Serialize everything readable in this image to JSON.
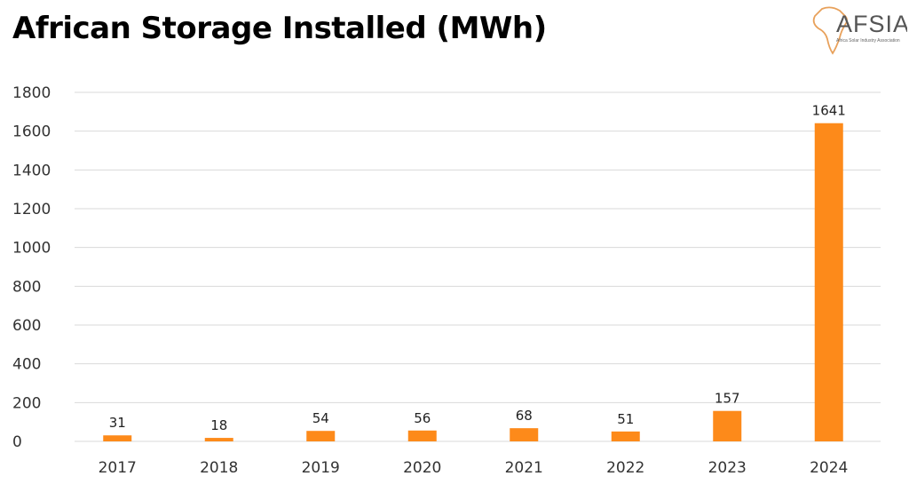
{
  "title": "African Storage Installed (MWh)",
  "logo": {
    "text": "AFSIA",
    "subtitle": "Africa Solar Industry Association"
  },
  "colors": {
    "bar": "#FD8A1A",
    "grid": "#D9D9D9",
    "text": "#333333"
  },
  "chart_data": {
    "type": "bar",
    "title": "African Storage Installed (MWh)",
    "categories": [
      "2017",
      "2018",
      "2019",
      "2020",
      "2021",
      "2022",
      "2023",
      "2024"
    ],
    "values": [
      31,
      18,
      54,
      56,
      68,
      51,
      157,
      1641
    ],
    "data_labels": [
      "31",
      "18",
      "54",
      "56",
      "68",
      "51",
      "157",
      "1641"
    ],
    "yticks": [
      "0",
      "200",
      "400",
      "600",
      "800",
      "1000",
      "1200",
      "1400",
      "1600",
      "1800"
    ],
    "ylim": [
      0,
      1800
    ],
    "grid": true,
    "legend": "none",
    "xlabel": "",
    "ylabel": ""
  }
}
